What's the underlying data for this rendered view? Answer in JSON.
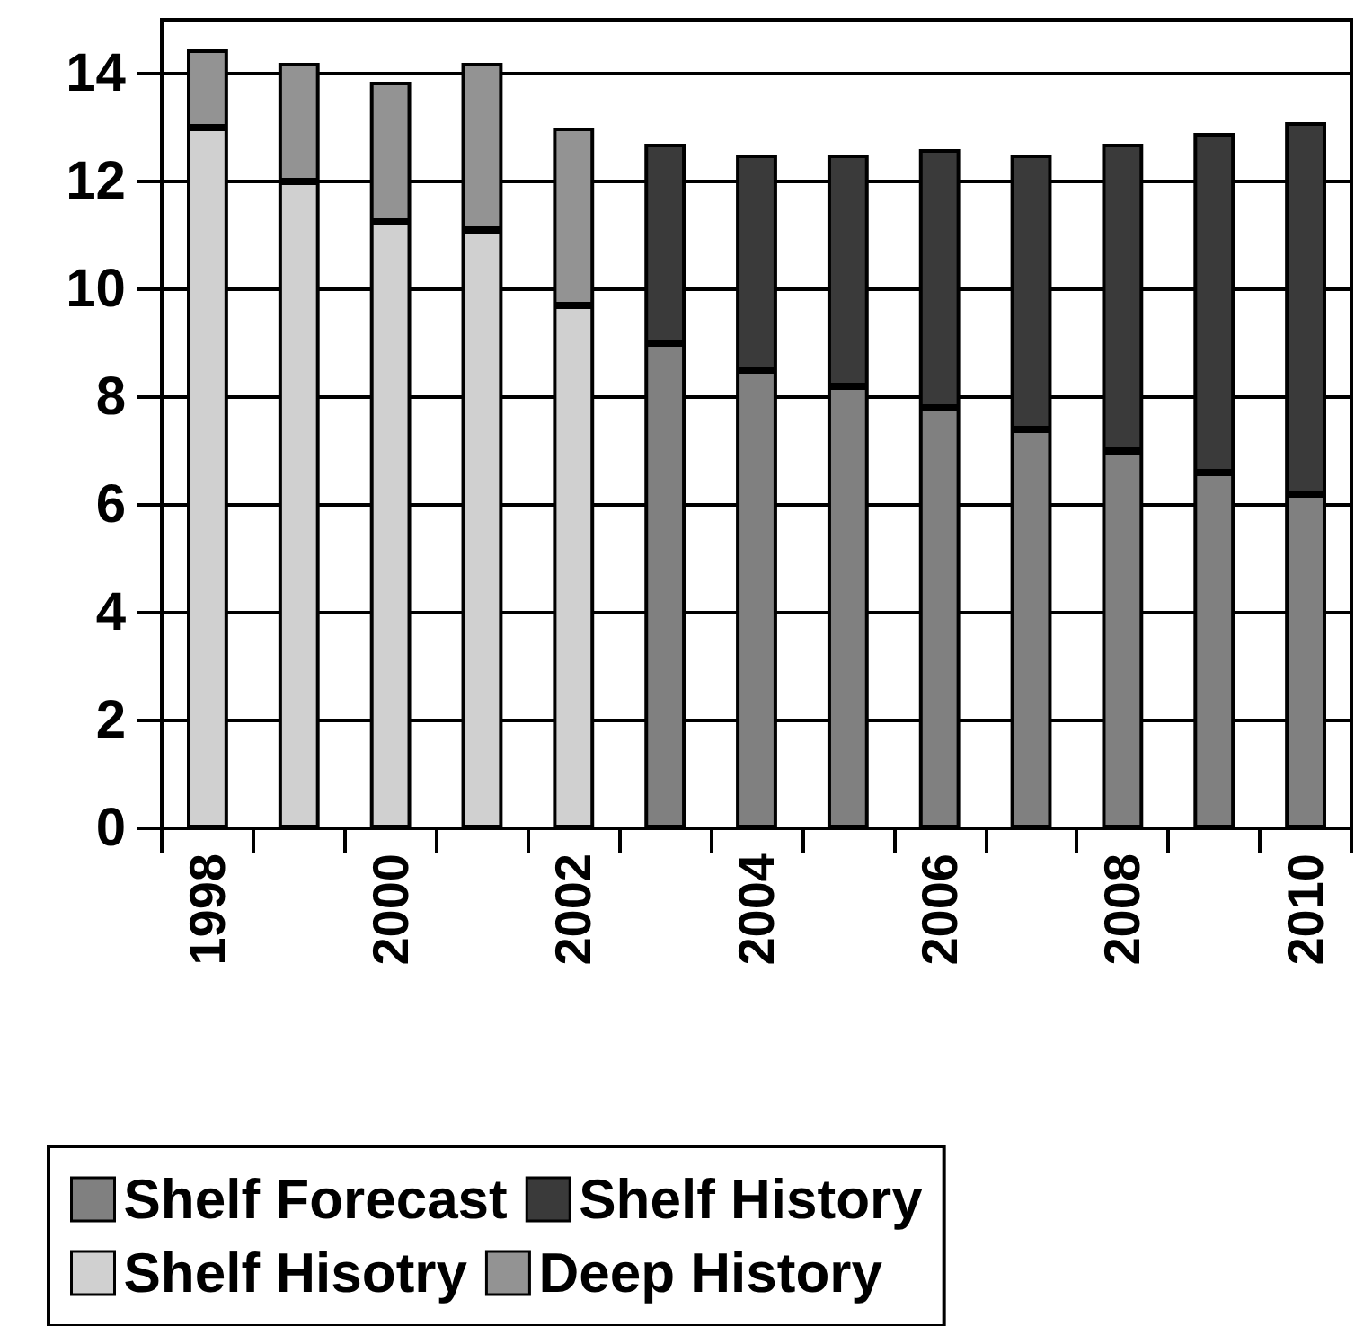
{
  "chart_data": {
    "type": "bar",
    "stacked": true,
    "categories": [
      "1998",
      null,
      "2000",
      null,
      "2002",
      null,
      "2004",
      null,
      "2006",
      null,
      "2008",
      null,
      "2010"
    ],
    "series": [
      {
        "name": "Shelf Forecast",
        "color": "#808080",
        "values": [
          null,
          null,
          null,
          null,
          null,
          9.0,
          8.5,
          8.2,
          7.8,
          7.4,
          7.0,
          6.6,
          6.2
        ]
      },
      {
        "name": "Shelf History",
        "color": "#3a3a3a",
        "values": [
          null,
          null,
          null,
          null,
          null,
          3.7,
          4.0,
          4.3,
          4.8,
          5.1,
          5.7,
          6.3,
          6.9
        ]
      },
      {
        "name": "Shelf Hisotry",
        "color": "#d0d0d0",
        "values": [
          13.0,
          12.0,
          11.25,
          11.1,
          9.7,
          null,
          null,
          null,
          null,
          null,
          null,
          null,
          null
        ]
      },
      {
        "name": "Deep History",
        "color": "#939393",
        "values": [
          1.45,
          2.2,
          2.6,
          3.1,
          3.3,
          null,
          null,
          null,
          null,
          null,
          null,
          null,
          null
        ]
      }
    ],
    "ylim": [
      0,
      15
    ],
    "yticks": [
      0,
      2,
      4,
      6,
      8,
      10,
      12,
      14
    ],
    "grid": "y",
    "legend": "bottom"
  }
}
